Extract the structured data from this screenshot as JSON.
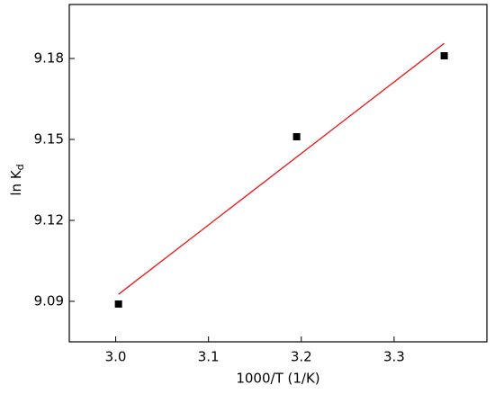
{
  "chart_data": {
    "type": "scatter",
    "xlabel": "1000/T (1/K)",
    "ylabel": "ln K",
    "ylabel_subscript": "d",
    "series": [
      {
        "x": [
          3.003,
          3.195,
          3.354
        ],
        "values": [
          9.089,
          9.151,
          9.181
        ],
        "color": "#000000"
      }
    ],
    "fit": {
      "x": [
        3.003,
        3.354
      ],
      "values": [
        9.0926,
        9.1856
      ],
      "color": "#e8191a"
    },
    "xlim": [
      2.95,
      3.4
    ],
    "ylim": [
      9.075,
      9.2
    ],
    "xticks": [
      {
        "value": 3.0,
        "label": "3.0"
      },
      3.1,
      3.2,
      3.3
    ],
    "yticks": [
      9.09,
      9.12,
      9.15,
      9.18
    ],
    "grid": false
  }
}
